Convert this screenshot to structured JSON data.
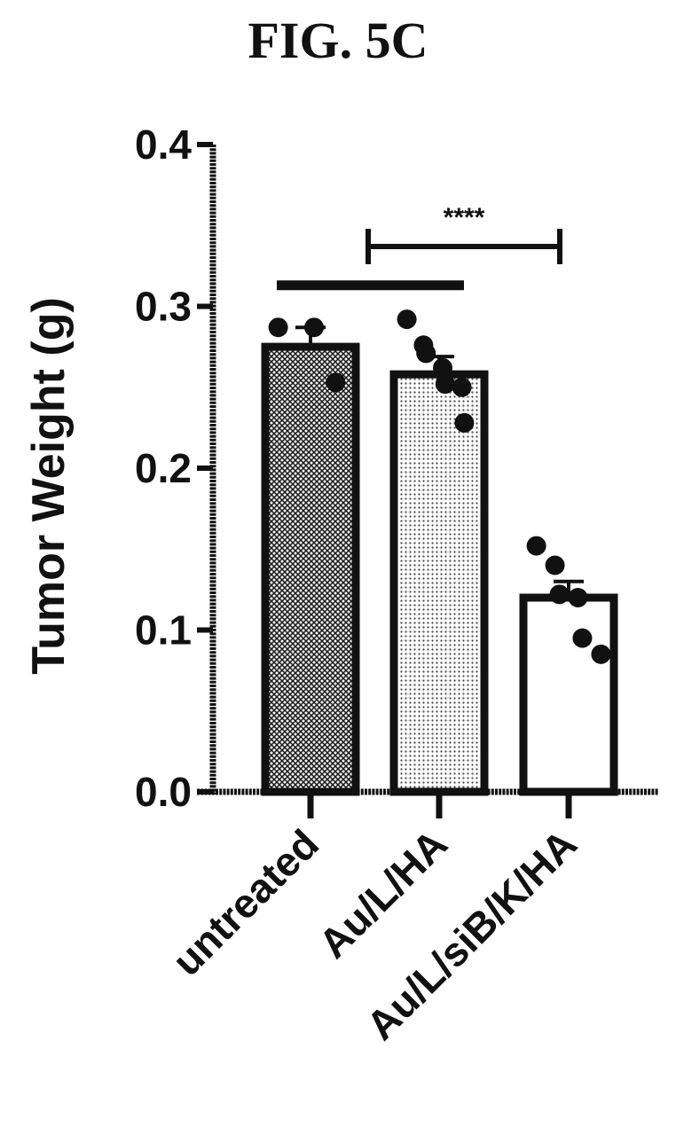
{
  "chart_data": {
    "type": "bar",
    "title": "FIG. 5C",
    "ylabel": "Tumor Weight (g)",
    "xlabel": "",
    "ylim": [
      0,
      0.4
    ],
    "yticks": [
      "0.0",
      "0.1",
      "0.2",
      "0.3",
      "0.4"
    ],
    "categories": [
      "untreated",
      "Au/L/HA",
      "Au/L/siB/K/HA"
    ],
    "values": [
      0.275,
      0.258,
      0.12
    ],
    "sem": [
      0.012,
      0.011,
      0.01
    ],
    "points": [
      [
        0.287,
        0.287,
        0.253
      ],
      [
        0.292,
        0.276,
        0.271,
        0.262,
        0.252,
        0.25,
        0.228
      ],
      [
        0.152,
        0.14,
        0.122,
        0.12,
        0.095,
        0.085
      ]
    ],
    "bar_fills": [
      "dense-hatch",
      "light-hatch",
      "white"
    ],
    "significance": [
      {
        "from": 1,
        "to": 2,
        "label": "****"
      }
    ],
    "group_line": {
      "from": 0,
      "to": 1,
      "y": 0.313
    },
    "grid": false,
    "legend": "none"
  }
}
